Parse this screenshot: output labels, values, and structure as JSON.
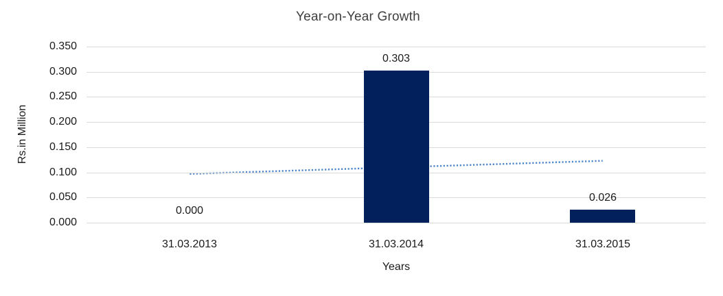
{
  "frame": {
    "border_color": "#c9c9c9",
    "background": "#ffffff"
  },
  "chart_data": {
    "type": "bar",
    "title": "Year-on-Year Growth",
    "xlabel": "Years",
    "ylabel": "Rs.in Million",
    "categories": [
      "31.03.2013",
      "31.03.2014",
      "31.03.2015"
    ],
    "values": [
      0.0,
      0.303,
      0.026
    ],
    "data_labels": [
      "0.000",
      "0.303",
      "0.026"
    ],
    "ylim": [
      0,
      0.35
    ],
    "y_ticks": [
      0.0,
      0.05,
      0.1,
      0.15,
      0.2,
      0.25,
      0.3,
      0.35
    ],
    "y_tick_labels": [
      "0.000",
      "0.050",
      "0.100",
      "0.150",
      "0.200",
      "0.250",
      "0.300",
      "0.350"
    ],
    "grid": true,
    "legend": "none",
    "bar_color": "#02215c",
    "gridline_color": "#d9d9d9",
    "trendline": {
      "type": "linear",
      "style": "dotted",
      "color": "#4e86c8",
      "start_value": 0.097,
      "end_value": 0.123
    }
  }
}
